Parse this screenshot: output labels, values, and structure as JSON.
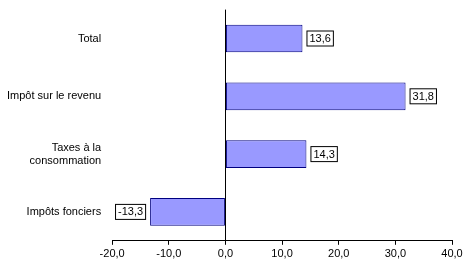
{
  "chart_data": {
    "type": "bar",
    "orientation": "horizontal",
    "categories": [
      "Total",
      "Impôt sur le revenu",
      "Taxes à la consommation",
      "Impôts fonciers"
    ],
    "values": [
      13.6,
      31.8,
      14.3,
      -13.3
    ],
    "value_labels": [
      "13,6",
      "31,8",
      "14,3",
      "-13,3"
    ],
    "color": "#9999ff",
    "xlim": [
      -20,
      40
    ],
    "xticks": [
      {
        "value": -20,
        "label": "-20,0"
      },
      {
        "value": -10,
        "label": "-10,0"
      },
      {
        "value": 0,
        "label": "0,0"
      },
      {
        "value": 10,
        "label": "10,0"
      },
      {
        "value": 20,
        "label": "20,0"
      },
      {
        "value": 30,
        "label": "30,0"
      },
      {
        "value": 40,
        "label": "40,0"
      }
    ],
    "grid": false,
    "data_labels": true
  }
}
